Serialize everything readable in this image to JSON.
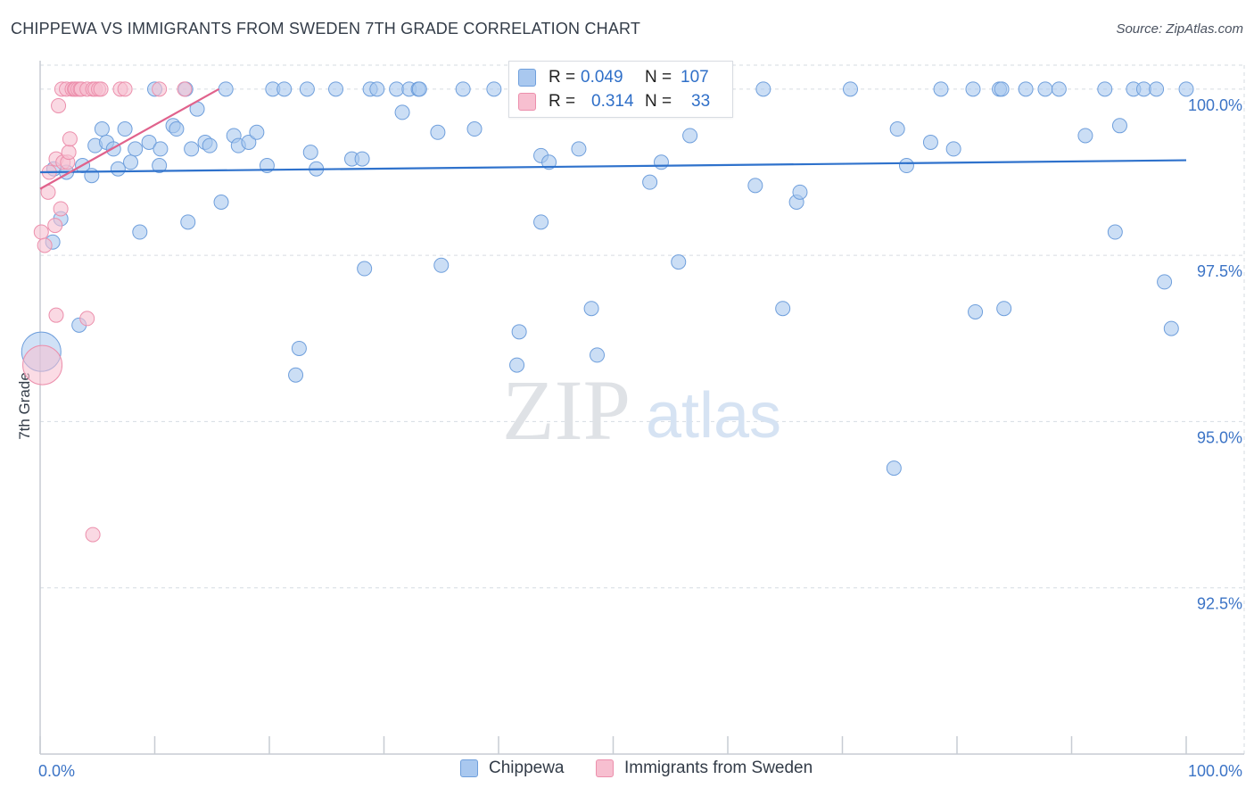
{
  "title": "CHIPPEWA VS IMMIGRANTS FROM SWEDEN 7TH GRADE CORRELATION CHART",
  "source": "Source: ZipAtlas.com",
  "watermark": {
    "part1": "ZIP",
    "part2": "atlas"
  },
  "colors": {
    "blue_fill": "#a9c8ef",
    "blue_stroke": "#6f9fdc",
    "blue_line": "#2f72cc",
    "pink_fill": "#f7bfd0",
    "pink_stroke": "#ec8fac",
    "pink_line": "#e0628c",
    "axis_label": "#3c74c6",
    "grid": "#d6dbe2"
  },
  "legend": {
    "rows": [
      {
        "r_label": "R =",
        "r_value": "0.049",
        "n_label": "N =",
        "n_value": "107"
      },
      {
        "r_label": "R =",
        "r_value": "0.314",
        "n_label": "N =",
        "n_value": "33"
      }
    ]
  },
  "bottom_legend": {
    "series1": "Chippewa",
    "series2": "Immigrants from Sweden"
  },
  "chart_data": {
    "type": "scatter",
    "title": "CHIPPEWA VS IMMIGRANTS FROM SWEDEN 7TH GRADE CORRELATION CHART",
    "xlabel": "",
    "ylabel": "7th Grade",
    "xlim": [
      0,
      100
    ],
    "ylim": [
      90.0,
      100.36
    ],
    "x_tick_labels": [
      "0.0%",
      "100.0%"
    ],
    "y_ticks": [
      {
        "value": 100.0,
        "label": "100.0%"
      },
      {
        "value": 97.5,
        "label": "97.5%"
      },
      {
        "value": 95.0,
        "label": "95.0%"
      },
      {
        "value": 92.5,
        "label": "92.5%"
      }
    ],
    "grid": true,
    "series": [
      {
        "name": "Chippewa",
        "color": "blue",
        "trend": {
          "x": [
            0,
            100
          ],
          "y": [
            98.75,
            98.93
          ]
        },
        "points": [
          [
            0.1,
            96.05
          ],
          [
            1.1,
            97.7
          ],
          [
            1.2,
            98.8
          ],
          [
            1.8,
            98.05
          ],
          [
            2.3,
            98.75
          ],
          [
            3.4,
            96.45
          ],
          [
            3.7,
            98.85
          ],
          [
            4.5,
            98.7
          ],
          [
            4.8,
            99.15
          ],
          [
            5.4,
            99.4
          ],
          [
            5.8,
            99.2
          ],
          [
            6.4,
            99.1
          ],
          [
            6.8,
            98.8
          ],
          [
            7.4,
            99.4
          ],
          [
            7.9,
            98.9
          ],
          [
            8.3,
            99.1
          ],
          [
            8.7,
            97.85
          ],
          [
            9.5,
            99.2
          ],
          [
            10.0,
            100.0
          ],
          [
            10.4,
            98.85
          ],
          [
            10.5,
            99.1
          ],
          [
            11.6,
            99.45
          ],
          [
            11.9,
            99.4
          ],
          [
            12.7,
            100.0
          ],
          [
            12.9,
            98.0
          ],
          [
            13.2,
            99.1
          ],
          [
            13.7,
            99.7
          ],
          [
            14.4,
            99.2
          ],
          [
            14.8,
            99.15
          ],
          [
            15.8,
            98.3
          ],
          [
            16.2,
            100.0
          ],
          [
            16.9,
            99.3
          ],
          [
            17.3,
            99.15
          ],
          [
            18.2,
            99.2
          ],
          [
            18.9,
            99.35
          ],
          [
            19.8,
            98.85
          ],
          [
            20.3,
            100.0
          ],
          [
            21.3,
            100.0
          ],
          [
            22.3,
            95.7
          ],
          [
            22.6,
            96.1
          ],
          [
            23.3,
            100.0
          ],
          [
            23.6,
            99.05
          ],
          [
            24.1,
            98.8
          ],
          [
            25.8,
            100.0
          ],
          [
            27.2,
            98.95
          ],
          [
            28.1,
            98.95
          ],
          [
            28.3,
            97.3
          ],
          [
            28.8,
            100.0
          ],
          [
            29.4,
            100.0
          ],
          [
            31.1,
            100.0
          ],
          [
            31.6,
            99.65
          ],
          [
            32.2,
            100.0
          ],
          [
            33.0,
            100.0
          ],
          [
            33.1,
            100.0
          ],
          [
            34.7,
            99.35
          ],
          [
            35.0,
            97.35
          ],
          [
            36.9,
            100.0
          ],
          [
            37.9,
            99.4
          ],
          [
            39.6,
            100.0
          ],
          [
            41.6,
            95.85
          ],
          [
            41.8,
            96.35
          ],
          [
            43.7,
            98.0
          ],
          [
            43.7,
            99.0
          ],
          [
            44.4,
            98.9
          ],
          [
            46.0,
            100.0
          ],
          [
            47.0,
            99.1
          ],
          [
            48.1,
            96.7
          ],
          [
            48.6,
            96.0
          ],
          [
            49.6,
            100.0
          ],
          [
            51.3,
            100.0
          ],
          [
            53.2,
            98.6
          ],
          [
            54.2,
            98.9
          ],
          [
            55.7,
            97.4
          ],
          [
            56.7,
            99.3
          ],
          [
            58.4,
            100.0
          ],
          [
            62.4,
            98.55
          ],
          [
            63.1,
            100.0
          ],
          [
            64.8,
            96.7
          ],
          [
            66.0,
            98.3
          ],
          [
            66.3,
            98.45
          ],
          [
            70.7,
            100.0
          ],
          [
            74.5,
            94.3
          ],
          [
            74.8,
            99.4
          ],
          [
            75.6,
            98.85
          ],
          [
            77.7,
            99.2
          ],
          [
            78.6,
            100.0
          ],
          [
            79.7,
            99.1
          ],
          [
            81.6,
            96.65
          ],
          [
            83.7,
            100.0
          ],
          [
            84.1,
            96.7
          ],
          [
            86.0,
            100.0
          ],
          [
            87.7,
            100.0
          ],
          [
            88.9,
            100.0
          ],
          [
            91.2,
            99.3
          ],
          [
            92.9,
            100.0
          ],
          [
            93.8,
            97.85
          ],
          [
            94.2,
            99.45
          ],
          [
            95.4,
            100.0
          ],
          [
            96.3,
            100.0
          ],
          [
            98.7,
            96.4
          ],
          [
            97.4,
            100.0
          ],
          [
            98.1,
            97.1
          ],
          [
            100.0,
            100.0
          ],
          [
            59.2,
            100.0
          ],
          [
            56.0,
            100.0
          ],
          [
            81.4,
            100.0
          ],
          [
            83.9,
            100.0
          ]
        ],
        "large_points": [
          [
            0.1,
            96.05
          ]
        ]
      },
      {
        "name": "Immigrants from Sweden",
        "color": "pink",
        "trend": {
          "x": [
            0,
            15.6
          ],
          "y": [
            98.5,
            100.0
          ]
        },
        "points": [
          [
            0.1,
            97.85
          ],
          [
            0.2,
            95.85
          ],
          [
            0.4,
            97.65
          ],
          [
            0.7,
            98.45
          ],
          [
            0.8,
            98.75
          ],
          [
            1.3,
            97.95
          ],
          [
            1.4,
            96.6
          ],
          [
            1.4,
            98.95
          ],
          [
            1.6,
            99.75
          ],
          [
            1.8,
            98.2
          ],
          [
            1.9,
            100.0
          ],
          [
            2.0,
            98.9
          ],
          [
            2.3,
            100.0
          ],
          [
            2.4,
            98.9
          ],
          [
            2.5,
            99.05
          ],
          [
            2.6,
            99.25
          ],
          [
            2.8,
            100.0
          ],
          [
            3.0,
            100.0
          ],
          [
            3.1,
            100.0
          ],
          [
            3.3,
            100.0
          ],
          [
            3.5,
            100.0
          ],
          [
            3.6,
            100.0
          ],
          [
            4.1,
            100.0
          ],
          [
            4.1,
            96.55
          ],
          [
            4.6,
            100.0
          ],
          [
            4.8,
            100.0
          ],
          [
            5.1,
            100.0
          ],
          [
            5.3,
            100.0
          ],
          [
            7.0,
            100.0
          ],
          [
            7.4,
            100.0
          ],
          [
            10.4,
            100.0
          ],
          [
            12.6,
            100.0
          ],
          [
            4.6,
            93.3
          ]
        ],
        "large_points": [
          [
            0.2,
            95.85
          ]
        ]
      }
    ]
  }
}
